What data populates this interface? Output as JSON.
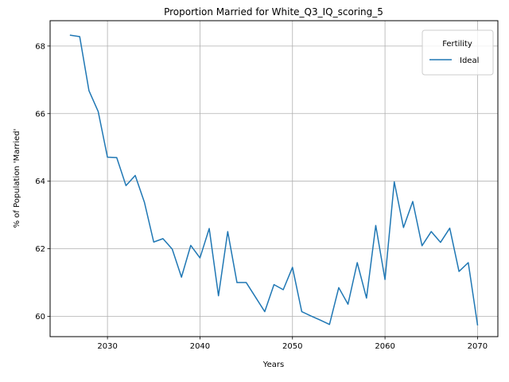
{
  "chart_data": {
    "type": "line",
    "title": "Proportion Married for White_Q3_IQ_scoring_5",
    "xlabel": "Years",
    "ylabel": "% of Population 'Married'",
    "xlim": [
      2023.8,
      2072.2
    ],
    "ylim": [
      59.4,
      68.75
    ],
    "xticks": [
      2030,
      2040,
      2050,
      2060,
      2070
    ],
    "yticks": [
      60,
      62,
      64,
      66,
      68
    ],
    "grid": true,
    "legend": {
      "title": "Fertility",
      "position": "upper right"
    },
    "series": [
      {
        "name": "Ideal",
        "color": "#1f77b4",
        "x": [
          2026,
          2027,
          2028,
          2029,
          2030,
          2031,
          2032,
          2033,
          2034,
          2035,
          2036,
          2037,
          2038,
          2039,
          2040,
          2041,
          2042,
          2043,
          2044,
          2045,
          2046,
          2047,
          2048,
          2049,
          2050,
          2051,
          2052,
          2053,
          2054,
          2055,
          2056,
          2057,
          2058,
          2059,
          2060,
          2061,
          2062,
          2063,
          2064,
          2065,
          2066,
          2067,
          2068,
          2069,
          2070
        ],
        "y": [
          68.32,
          68.28,
          66.68,
          66.06,
          64.71,
          64.7,
          63.87,
          64.17,
          63.37,
          62.2,
          62.3,
          61.99,
          61.16,
          62.1,
          61.73,
          62.6,
          60.61,
          62.51,
          61.0,
          61.0,
          60.57,
          60.14,
          60.94,
          60.79,
          61.45,
          60.14,
          60.01,
          59.89,
          59.76,
          60.85,
          60.36,
          61.59,
          60.54,
          62.69,
          61.09,
          63.98,
          62.63,
          63.4,
          62.09,
          62.51,
          62.19,
          62.61,
          61.33,
          61.59,
          59.75
        ]
      }
    ]
  }
}
